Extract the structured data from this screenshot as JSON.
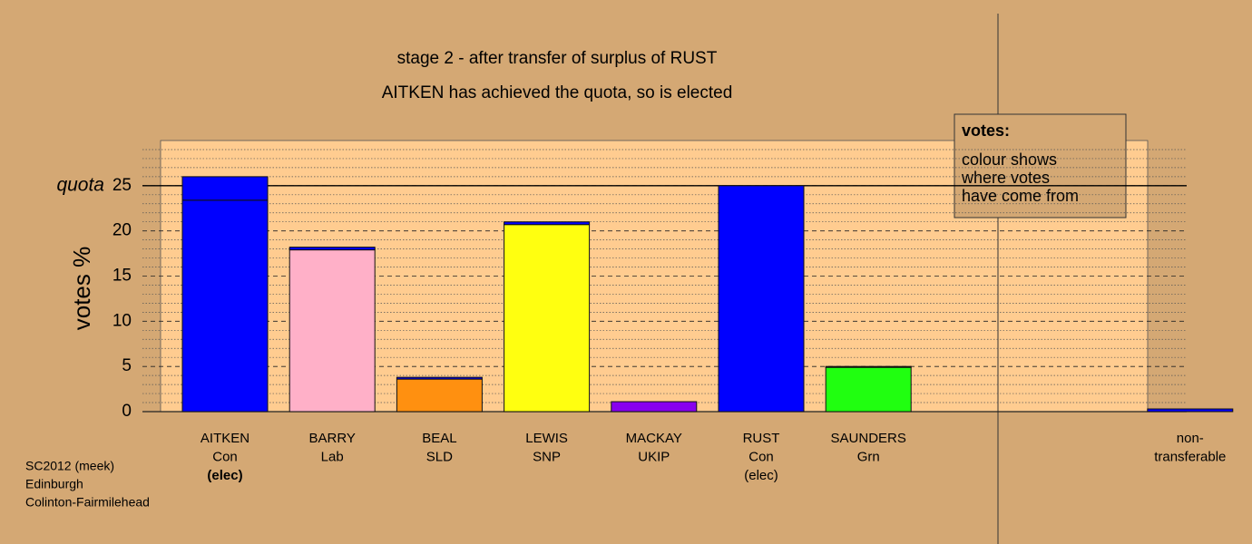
{
  "chart_data": {
    "type": "bar",
    "stacked": true,
    "title": "stage 2 - after transfer of surplus of RUST",
    "subtitle": "AITKEN has achieved the quota, so is elected",
    "y_label": "votes %",
    "categories": [
      [
        "AITKEN",
        "Con",
        "(elec)"
      ],
      [
        "BARRY",
        "Lab"
      ],
      [
        "BEAL",
        "SLD"
      ],
      [
        "LEWIS",
        "SNP"
      ],
      [
        "MACKAY",
        "UKIP"
      ],
      [
        "RUST",
        "Con",
        "(elec)"
      ],
      [
        "SAUNDERS",
        "Grn"
      ],
      [
        "non-",
        "transferable"
      ]
    ],
    "series": [
      {
        "values": [
          23.4,
          17.9,
          3.6,
          20.7,
          1.1,
          25.0,
          4.9,
          null
        ],
        "colors": [
          "#0000ff",
          "#ffb0c8",
          "#ff9010",
          "#ffff10",
          "#8800ee",
          "#0000ff",
          "#20ff10",
          null
        ]
      },
      {
        "values": [
          2.6,
          0.3,
          0.2,
          0.3,
          null,
          null,
          0.1,
          0.3
        ],
        "colors": [
          "#0000ff",
          "#0000ff",
          "#0000ff",
          "#0000ff",
          null,
          null,
          "#0000ff",
          "#0000ff"
        ]
      }
    ],
    "ylim": [
      0,
      30
    ],
    "yticks": [
      0,
      5,
      10,
      15,
      20,
      25
    ],
    "minor_grid_step": 1,
    "quota": 25,
    "quota_label": "quota",
    "legend": {
      "title": "votes:",
      "lines": [
        "colour shows",
        "where votes",
        "have come from"
      ]
    },
    "footer": [
      "SC2012 (meek)",
      "Edinburgh",
      "Colinton-Fairmilehead"
    ]
  }
}
